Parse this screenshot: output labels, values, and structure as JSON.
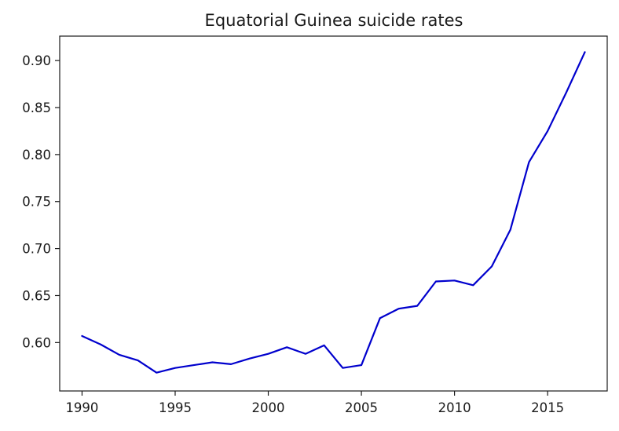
{
  "chart_data": {
    "type": "line",
    "title": "Equatorial Guinea suicide rates",
    "xlabel": "",
    "ylabel": "",
    "xlim": [
      1988.8,
      2018.2
    ],
    "ylim": [
      0.5485,
      0.926
    ],
    "xticks": [
      1990,
      1995,
      2000,
      2005,
      2010,
      2015
    ],
    "xtick_labels": [
      "1990",
      "1995",
      "2000",
      "2005",
      "2010",
      "2015"
    ],
    "yticks": [
      0.6,
      0.65,
      0.7,
      0.75,
      0.8,
      0.85,
      0.9
    ],
    "ytick_labels": [
      "0.60",
      "0.65",
      "0.70",
      "0.75",
      "0.80",
      "0.85",
      "0.90"
    ],
    "grid": false,
    "legend": "none",
    "series": [
      {
        "color": "#0000cd",
        "x": [
          1990,
          1991,
          1992,
          1993,
          1994,
          1995,
          1996,
          1997,
          1998,
          1999,
          2000,
          2001,
          2002,
          2003,
          2004,
          2005,
          2006,
          2007,
          2008,
          2009,
          2010,
          2011,
          2012,
          2013,
          2014,
          2015,
          2016,
          2017
        ],
        "y": [
          0.607,
          0.598,
          0.587,
          0.581,
          0.568,
          0.573,
          0.576,
          0.579,
          0.577,
          0.583,
          0.588,
          0.595,
          0.588,
          0.597,
          0.573,
          0.576,
          0.626,
          0.636,
          0.639,
          0.665,
          0.666,
          0.661,
          0.681,
          0.72,
          0.792,
          0.825,
          0.866,
          0.909
        ]
      }
    ]
  }
}
